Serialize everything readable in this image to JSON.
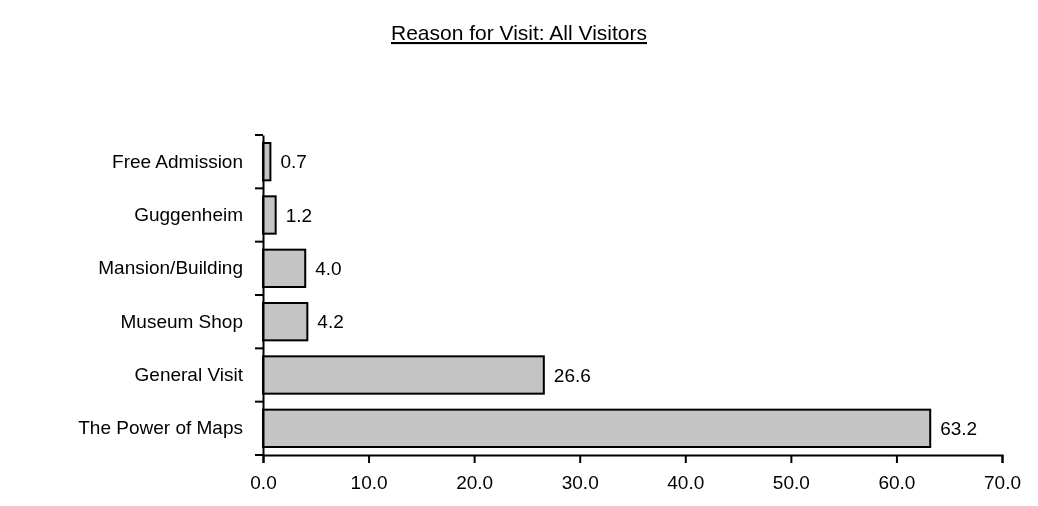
{
  "chart_data": {
    "type": "bar",
    "orientation": "horizontal",
    "title": "Reason for Visit: All Visitors",
    "categories": [
      "Free Admission",
      "Guggenheim",
      "Mansion/Building",
      "Museum Shop",
      "General Visit",
      "The Power of Maps"
    ],
    "values": [
      0.7,
      1.2,
      4.0,
      4.2,
      26.6,
      63.2
    ],
    "value_labels": [
      "0.7",
      "1.2",
      "4.0",
      "4.2",
      "26.6",
      "63.2"
    ],
    "color": "#c4c4c4",
    "xlim": [
      0,
      70
    ],
    "xticks": [
      {
        "value": 0,
        "label": "0.0"
      },
      {
        "value": 10,
        "label": "10.0"
      },
      {
        "value": 20,
        "label": "20.0"
      },
      {
        "value": 30,
        "label": "30.0"
      },
      {
        "value": 40,
        "label": "40.0"
      },
      {
        "value": 50,
        "label": "50.0"
      },
      {
        "value": 60,
        "label": "60.0"
      },
      {
        "value": 70,
        "label": "70.0"
      }
    ],
    "grid": false
  }
}
